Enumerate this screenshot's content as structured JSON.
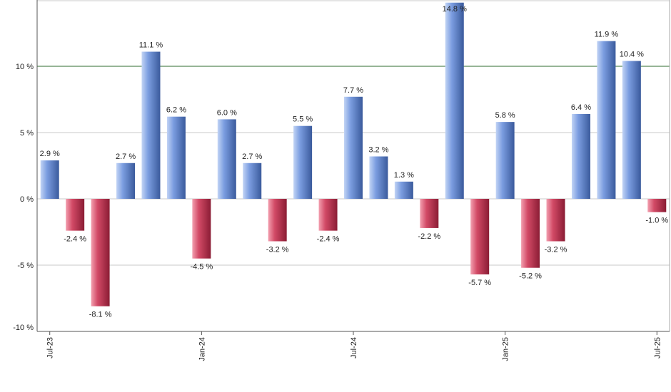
{
  "chart_data": {
    "type": "bar",
    "title": "",
    "xlabel": "",
    "ylabel": "",
    "ylim": [
      -10,
      15
    ],
    "grid": true,
    "reference_line": 10,
    "colors": {
      "positive": "#6f93dc",
      "negative": "#c83c5a",
      "reference_line": "#2e6b2e",
      "grid": "#c8c8c8"
    },
    "x_tick_labels": [
      {
        "label": "Jul-23",
        "index": 0
      },
      {
        "label": "Jan-24",
        "index": 6
      },
      {
        "label": "Jul-24",
        "index": 12
      },
      {
        "label": "Jan-25",
        "index": 18
      },
      {
        "label": "Jul-25",
        "index": 24
      }
    ],
    "y_ticks": [
      {
        "value": -10,
        "label": "-10 %"
      },
      {
        "value": -5,
        "label": "-5 %"
      },
      {
        "value": 0,
        "label": "0 %"
      },
      {
        "value": 5,
        "label": "5 %"
      },
      {
        "value": 10,
        "label": "10 %"
      }
    ],
    "values": [
      2.9,
      -2.4,
      -8.1,
      2.7,
      11.1,
      6.2,
      -4.5,
      6.0,
      2.7,
      -3.2,
      5.5,
      -2.4,
      7.7,
      3.2,
      1.3,
      -2.2,
      14.8,
      -5.7,
      5.8,
      -5.2,
      -3.2,
      6.4,
      11.9,
      10.4,
      -1.0
    ],
    "labels": [
      "2.9 %",
      "-2.4 %",
      "-8.1 %",
      "2.7 %",
      "11.1 %",
      "6.2 %",
      "-4.5 %",
      "6.0 %",
      "2.7 %",
      "-3.2 %",
      "5.5 %",
      "-2.4 %",
      "7.7 %",
      "3.2 %",
      "1.3 %",
      "-2.2 %",
      "14.8 %",
      "-5.7 %",
      "5.8 %",
      "-5.2 %",
      "-3.2 %",
      "6.4 %",
      "11.9 %",
      "10.4 %",
      "-1.0 %"
    ]
  }
}
